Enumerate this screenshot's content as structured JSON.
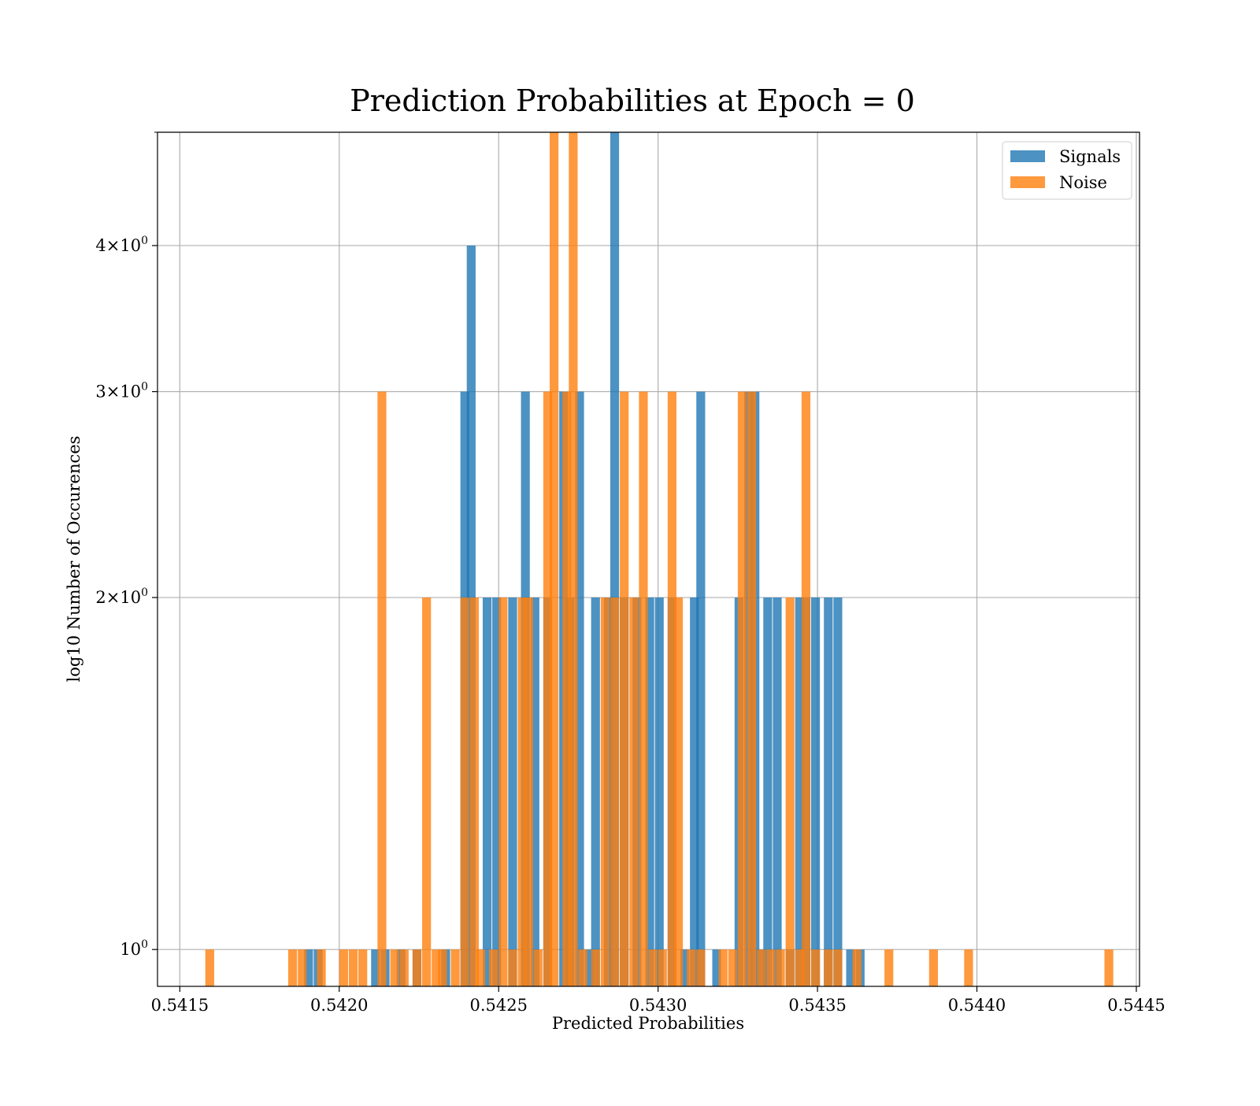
{
  "chart_data": {
    "type": "bar",
    "title": "Prediction Probabilities at Epoch = 0",
    "xlabel": "Predicted Probabilities",
    "ylabel": "log10 Number of Occurences",
    "xscale": "linear",
    "yscale": "log",
    "xlim": [
      0.54143,
      0.54451
    ],
    "ylim": [
      0.93,
      5.0
    ],
    "x_ticks": [
      {
        "value": 0.5415,
        "label": "0.5415"
      },
      {
        "value": 0.542,
        "label": "0.5420"
      },
      {
        "value": 0.5425,
        "label": "0.5425"
      },
      {
        "value": 0.543,
        "label": "0.5430"
      },
      {
        "value": 0.5435,
        "label": "0.5435"
      },
      {
        "value": 0.544,
        "label": "0.5440"
      },
      {
        "value": 0.5445,
        "label": "0.5445"
      }
    ],
    "y_ticks": [
      {
        "value": 1,
        "base": "10",
        "exp": "0"
      },
      {
        "value": 2,
        "base": "2×10",
        "exp": "0"
      },
      {
        "value": 3,
        "base": "3×10",
        "exp": "0"
      },
      {
        "value": 4,
        "base": "4×10",
        "exp": "0"
      }
    ],
    "y_extra_gridlines": [
      5
    ],
    "grid": true,
    "legend_position": "top-right",
    "bin_width": 2.77e-05,
    "series": [
      {
        "name": "Signals",
        "color": "#1f77b4",
        "opacity": 0.8,
        "bars": [
          [
            0.54189,
            1
          ],
          [
            0.54192,
            1
          ],
          [
            0.5421,
            1
          ],
          [
            0.54213,
            1
          ],
          [
            0.54218,
            1
          ],
          [
            0.54223,
            1
          ],
          [
            0.54232,
            1
          ],
          [
            0.54238,
            3
          ],
          [
            0.5424,
            4
          ],
          [
            0.54245,
            2
          ],
          [
            0.54248,
            2
          ],
          [
            0.54253,
            2
          ],
          [
            0.54257,
            3
          ],
          [
            0.5426,
            2
          ],
          [
            0.54264,
            2
          ],
          [
            0.54269,
            3
          ],
          [
            0.54271,
            2
          ],
          [
            0.54274,
            3
          ],
          [
            0.54277,
            1
          ],
          [
            0.54279,
            2
          ],
          [
            0.54283,
            2
          ],
          [
            0.54285,
            5
          ],
          [
            0.54288,
            2
          ],
          [
            0.54292,
            2
          ],
          [
            0.54296,
            2
          ],
          [
            0.54299,
            2
          ],
          [
            0.54303,
            2
          ],
          [
            0.54307,
            1
          ],
          [
            0.5431,
            2
          ],
          [
            0.54312,
            3
          ],
          [
            0.54317,
            1
          ],
          [
            0.54324,
            2
          ],
          [
            0.54327,
            3
          ],
          [
            0.54329,
            3
          ],
          [
            0.54331,
            1
          ],
          [
            0.54333,
            2
          ],
          [
            0.54336,
            2
          ],
          [
            0.5434,
            1
          ],
          [
            0.54343,
            2
          ],
          [
            0.54345,
            2
          ],
          [
            0.54348,
            2
          ],
          [
            0.54352,
            2
          ],
          [
            0.54355,
            2
          ],
          [
            0.54359,
            1
          ],
          [
            0.54362,
            1
          ]
        ]
      },
      {
        "name": "Noise",
        "color": "#ff7f0e",
        "opacity": 0.8,
        "bars": [
          [
            0.54158,
            1
          ],
          [
            0.54184,
            1
          ],
          [
            0.54187,
            1
          ],
          [
            0.54193,
            1
          ],
          [
            0.542,
            1
          ],
          [
            0.54203,
            1
          ],
          [
            0.54206,
            1
          ],
          [
            0.54212,
            3
          ],
          [
            0.54216,
            1
          ],
          [
            0.54219,
            1
          ],
          [
            0.54223,
            1
          ],
          [
            0.54226,
            2
          ],
          [
            0.54229,
            1
          ],
          [
            0.54231,
            1
          ],
          [
            0.54235,
            1
          ],
          [
            0.54238,
            2
          ],
          [
            0.54241,
            2
          ],
          [
            0.54243,
            1
          ],
          [
            0.54247,
            1
          ],
          [
            0.5425,
            2
          ],
          [
            0.54253,
            1
          ],
          [
            0.54256,
            2
          ],
          [
            0.54258,
            2
          ],
          [
            0.54261,
            1
          ],
          [
            0.54264,
            3
          ],
          [
            0.54266,
            5
          ],
          [
            0.5427,
            3
          ],
          [
            0.54272,
            5
          ],
          [
            0.54275,
            1
          ],
          [
            0.54279,
            1
          ],
          [
            0.54282,
            2
          ],
          [
            0.54285,
            2
          ],
          [
            0.54288,
            3
          ],
          [
            0.54291,
            2
          ],
          [
            0.54294,
            3
          ],
          [
            0.54297,
            1
          ],
          [
            0.543,
            1
          ],
          [
            0.54303,
            3
          ],
          [
            0.54305,
            2
          ],
          [
            0.54309,
            1
          ],
          [
            0.54312,
            1
          ],
          [
            0.54319,
            1
          ],
          [
            0.54322,
            1
          ],
          [
            0.54325,
            3
          ],
          [
            0.54328,
            3
          ],
          [
            0.54331,
            1
          ],
          [
            0.54334,
            1
          ],
          [
            0.54337,
            1
          ],
          [
            0.5434,
            2
          ],
          [
            0.54343,
            1
          ],
          [
            0.54345,
            3
          ],
          [
            0.54348,
            1
          ],
          [
            0.54352,
            1
          ],
          [
            0.54355,
            1
          ],
          [
            0.54361,
            1
          ],
          [
            0.54371,
            1
          ],
          [
            0.54385,
            1
          ],
          [
            0.54396,
            1
          ],
          [
            0.5444,
            1
          ]
        ]
      }
    ]
  }
}
